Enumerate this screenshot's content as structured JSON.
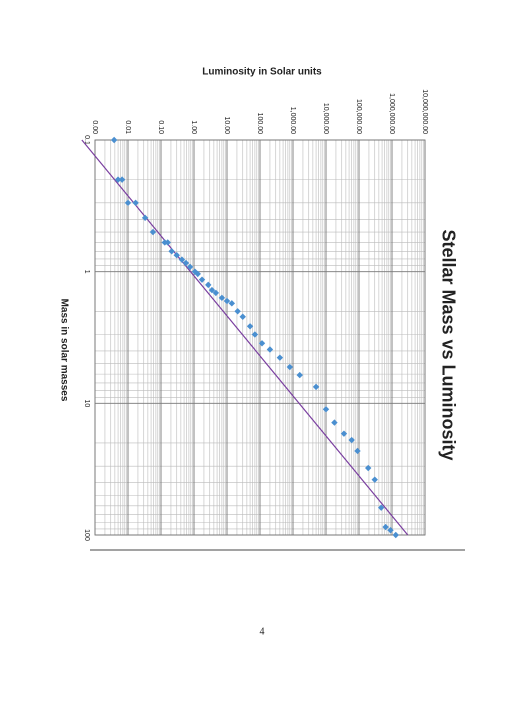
{
  "chart_data": {
    "type": "scatter",
    "title": "Stellar Mass vs Luminosity",
    "x_label": "Mass in solar masses",
    "y_label": "Luminosity in Solar units",
    "x": [
      0.1,
      0.2,
      0.2,
      0.3,
      0.3,
      0.39,
      0.5,
      0.6,
      0.6,
      0.7,
      0.75,
      0.81,
      0.86,
      0.92,
      1.0,
      1.04,
      1.15,
      1.26,
      1.38,
      1.45,
      1.58,
      1.67,
      1.74,
      2.0,
      2.2,
      2.6,
      3.0,
      3.5,
      3.9,
      4.5,
      5.3,
      6.1,
      7.5,
      11.1,
      14,
      17,
      19,
      23,
      31,
      38,
      62,
      87,
      92,
      100
    ],
    "values": [
      0.0038,
      0.005,
      0.0066,
      0.01,
      0.017,
      0.033,
      0.057,
      0.13,
      0.16,
      0.21,
      0.3,
      0.43,
      0.57,
      0.76,
      1.07,
      1.3,
      1.75,
      2.7,
      3.5,
      4.6,
      7,
      10,
      14,
      21,
      30,
      50,
      70,
      115,
      200,
      400,
      800,
      1600,
      5000,
      10000,
      18000,
      35000,
      60000,
      90000,
      190000,
      300000,
      470000,
      640000,
      900000,
      1300000
    ],
    "color": "#4a8fd0",
    "trendline": {
      "x": [
        0.1,
        100
      ],
      "values": [
        0.0004,
        3000000
      ],
      "color": "#7a3fa0"
    },
    "log_x": true,
    "log_y": true,
    "grid": true,
    "xlim": [
      0.1,
      100
    ],
    "xticks": [
      0.1,
      1,
      10,
      100
    ],
    "ylim": [
      0.001,
      10000000
    ],
    "yticks": [
      {
        "value": 0.001,
        "label": "0.00"
      },
      {
        "value": 0.01,
        "label": "0.01"
      },
      {
        "value": 0.1,
        "label": "0.10"
      },
      {
        "value": 1,
        "label": "1.00"
      },
      {
        "value": 10,
        "label": "10.00"
      },
      {
        "value": 100,
        "label": "100.00"
      },
      {
        "value": 1000,
        "label": "1,000.00"
      },
      {
        "value": 10000,
        "label": "10,000.00"
      },
      {
        "value": 100000,
        "label": "100,000.00"
      },
      {
        "value": 1000000,
        "label": "1,000,000.00"
      },
      {
        "value": 10000000,
        "label": "10,000,000.00"
      }
    ]
  },
  "page_number": "4"
}
